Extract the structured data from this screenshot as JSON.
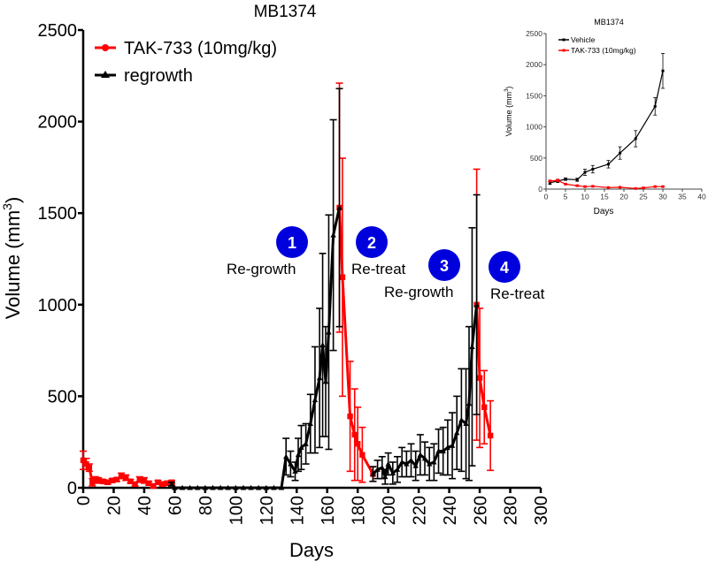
{
  "chart_data": [
    {
      "type": "line",
      "title": "MB1374",
      "xlabel": "Days",
      "ylabel": "Volume (mm",
      "ylabel_sup": "3",
      "ylabel_close": ")",
      "xlim": [
        0,
        300
      ],
      "ylim": [
        0,
        2500
      ],
      "xticks": [
        "0",
        "20",
        "40",
        "60",
        "80",
        "100",
        "120",
        "140",
        "160",
        "180",
        "200",
        "220",
        "240",
        "260",
        "280",
        "300"
      ],
      "yticks": [
        "0",
        "500",
        "1000",
        "1500",
        "2000",
        "2500"
      ],
      "legend_position": "top-left",
      "series": [
        {
          "name": "TAK-733 (10mg/kg)",
          "color": "#ff0000",
          "marker": "square",
          "segments": [
            {
              "x": [
                0,
                2,
                4,
                6,
                8,
                10,
                13,
                16,
                19,
                22,
                25,
                28,
                31,
                34,
                37,
                40,
                43,
                46,
                49,
                52,
                55,
                58
              ],
              "y": [
                150,
                130,
                110,
                30,
                45,
                40,
                35,
                30,
                40,
                45,
                65,
                55,
                35,
                20,
                45,
                40,
                25,
                10,
                30,
                20,
                25,
                30
              ],
              "err": [
                50,
                30,
                20,
                20,
                15,
                15,
                10,
                10,
                10,
                10,
                15,
                15,
                10,
                10,
                15,
                15,
                10,
                10,
                10,
                10,
                10,
                10
              ]
            },
            {
              "x": [
                168,
                170,
                175,
                178,
                180,
                183,
                190
              ],
              "y": [
                1530,
                1150,
                390,
                290,
                240,
                180,
                75
              ],
              "err": [
                680,
                650,
                300,
                250,
                200,
                150,
                40
              ]
            },
            {
              "x": [
                258,
                260,
                263,
                267
              ],
              "y": [
                1000,
                600,
                440,
                285
              ],
              "err": [
                740,
                380,
                200,
                190
              ]
            }
          ]
        },
        {
          "name": "regrowth",
          "color": "#000000",
          "marker": "triangle",
          "segments": [
            {
              "x": [
                58,
                60,
                65,
                70,
                75,
                80,
                85,
                90,
                95,
                100,
                105,
                110,
                115,
                120,
                125,
                130,
                133,
                136,
                139,
                141,
                143,
                146,
                149,
                152,
                155,
                157,
                159,
                161,
                164,
                168
              ],
              "y": [
                20,
                0,
                0,
                0,
                0,
                0,
                0,
                0,
                0,
                0,
                0,
                0,
                0,
                0,
                0,
                0,
                170,
                130,
                90,
                180,
                220,
                240,
                350,
                480,
                600,
                780,
                580,
                850,
                1380,
                1530
              ],
              "err": [
                10,
                0,
                0,
                0,
                0,
                0,
                0,
                0,
                0,
                0,
                0,
                0,
                0,
                0,
                0,
                0,
                100,
                70,
                50,
                90,
                120,
                110,
                160,
                290,
                380,
                500,
                300,
                640,
                630,
                650
              ]
            },
            {
              "x": [
                190,
                193,
                196,
                198,
                200,
                203,
                206,
                209,
                212,
                215,
                218,
                221,
                224,
                227,
                230,
                233,
                236,
                239,
                242,
                245,
                248,
                251,
                253,
                255,
                258
              ],
              "y": [
                75,
                100,
                110,
                60,
                130,
                80,
                100,
                140,
                130,
                150,
                120,
                180,
                160,
                130,
                140,
                200,
                200,
                220,
                230,
                300,
                370,
                350,
                460,
                770,
                1000
              ],
              "err": [
                40,
                50,
                60,
                40,
                60,
                60,
                70,
                80,
                70,
                90,
                80,
                110,
                90,
                90,
                100,
                120,
                130,
                150,
                180,
                200,
                280,
                300,
                420,
                650,
                600
              ]
            }
          ]
        }
      ]
    },
    {
      "type": "line",
      "title": "MB1374",
      "xlabel": "Days",
      "ylabel": "Volume (mm",
      "ylabel_sup": "3",
      "ylabel_close": ")",
      "xlim": [
        0,
        40
      ],
      "ylim": [
        0,
        2500
      ],
      "xticks": [
        "0",
        "5",
        "10",
        "15",
        "20",
        "25",
        "30",
        "35",
        "40"
      ],
      "yticks": [
        "0",
        "500",
        "1000",
        "1500",
        "2000",
        "2500"
      ],
      "legend_position": "top-left",
      "series": [
        {
          "name": "Vehicle",
          "color": "#000000",
          "marker": "square",
          "x": [
            1,
            3,
            5,
            8,
            10,
            12,
            16,
            19,
            23,
            28,
            30
          ],
          "y": [
            100,
            130,
            160,
            150,
            270,
            320,
            400,
            580,
            810,
            1330,
            1900
          ],
          "err": [
            25,
            25,
            20,
            25,
            50,
            60,
            60,
            100,
            130,
            140,
            280
          ]
        },
        {
          "name": "TAK-733 (10mg/kg)",
          "color": "#ff0000",
          "marker": "square",
          "x": [
            1,
            3,
            5,
            8,
            10,
            12,
            16,
            19,
            23,
            25,
            28,
            30
          ],
          "y": [
            130,
            140,
            80,
            55,
            40,
            45,
            25,
            30,
            10,
            20,
            40,
            40
          ],
          "err": [
            15,
            20,
            10,
            10,
            8,
            8,
            5,
            5,
            5,
            5,
            8,
            8
          ]
        }
      ]
    }
  ],
  "annotations": [
    {
      "num": "1",
      "label": "Re-growth",
      "color": "#0000dd"
    },
    {
      "num": "2",
      "label": "Re-treat",
      "color": "#0000dd"
    },
    {
      "num": "3",
      "label": "Re-growth",
      "color": "#0000dd"
    },
    {
      "num": "4",
      "label": "Re-treat",
      "color": "#0000dd"
    }
  ]
}
